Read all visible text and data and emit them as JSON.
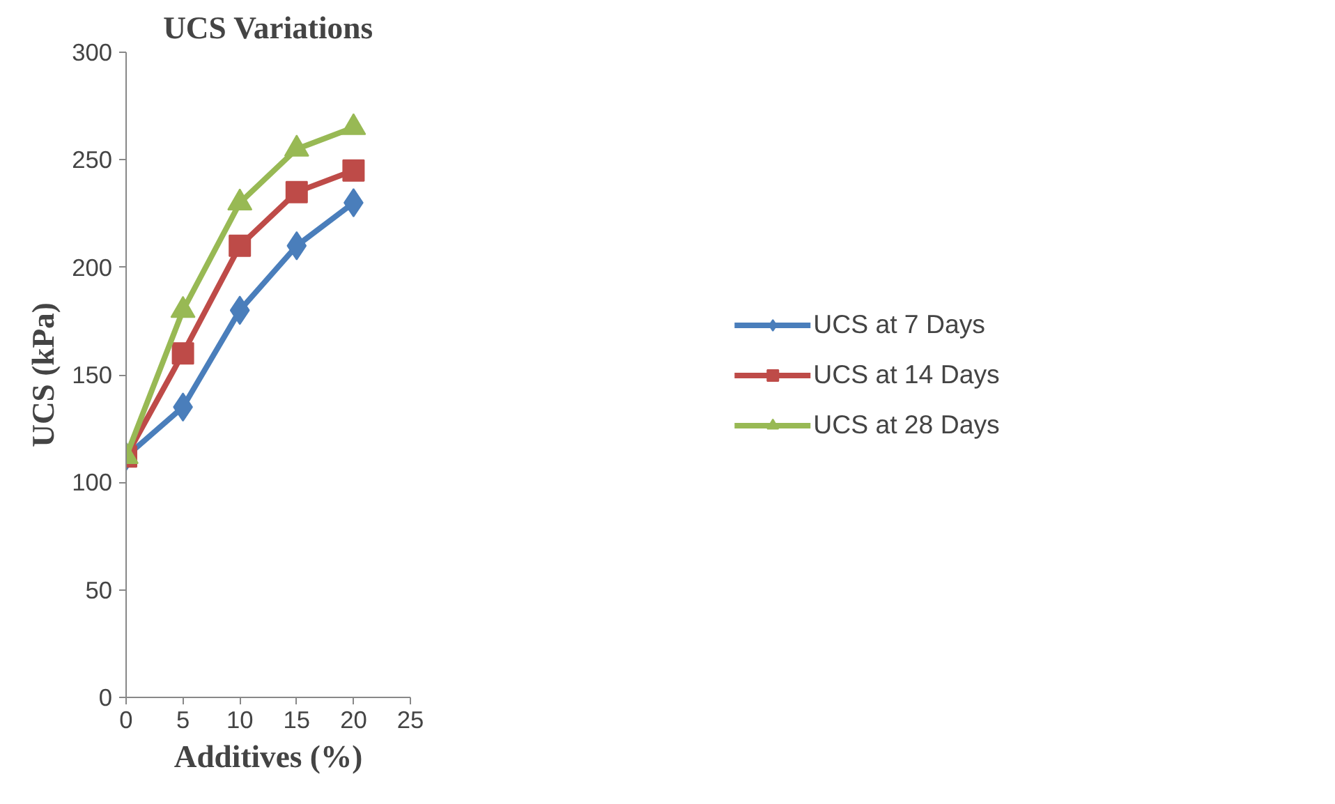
{
  "chart_data": {
    "type": "line",
    "title": "UCS Variations",
    "xlabel": "Additives (%)",
    "ylabel": "UCS (kPa)",
    "x": [
      0,
      5,
      10,
      15,
      20
    ],
    "series": [
      {
        "name": "UCS at 7 Days",
        "color": "#4a7ebb",
        "marker": "diamond",
        "values": [
          112,
          135,
          180,
          210,
          230
        ]
      },
      {
        "name": "UCS at 14 Days",
        "color": "#be4b48",
        "marker": "square",
        "values": [
          112,
          160,
          210,
          235,
          245
        ]
      },
      {
        "name": "UCS at 28 Days",
        "color": "#98b954",
        "marker": "triangle",
        "values": [
          112,
          180,
          230,
          255,
          265
        ]
      }
    ],
    "xlim": [
      0,
      25
    ],
    "xticks": [
      0,
      5,
      10,
      15,
      20,
      25
    ],
    "ylim": [
      0,
      300
    ],
    "yticks": [
      0,
      50,
      100,
      150,
      200,
      250,
      300
    ],
    "grid": false,
    "legend": "right",
    "line_style": "solid"
  }
}
